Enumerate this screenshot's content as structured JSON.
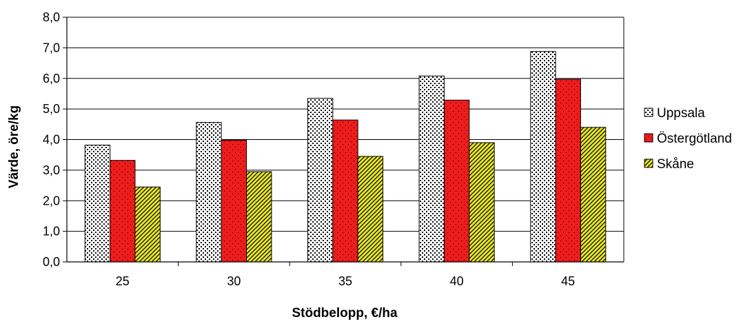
{
  "chart_data": {
    "type": "bar",
    "xlabel": "Stödbelopp, €/ha",
    "ylabel": "Värde, öre/kg",
    "categories": [
      "25",
      "30",
      "35",
      "40",
      "45"
    ],
    "ylim": [
      0,
      8
    ],
    "yticks": [
      "0,0",
      "1,0",
      "2,0",
      "3,0",
      "4,0",
      "5,0",
      "6,0",
      "7,0",
      "8,0"
    ],
    "grid": true,
    "legend_position": "right",
    "series": [
      {
        "name": "Uppsala",
        "values": [
          3.82,
          4.56,
          5.35,
          6.08,
          6.88
        ],
        "color": "#ffffff",
        "pattern": "dots-black"
      },
      {
        "name": "Östergötland",
        "values": [
          3.32,
          3.98,
          4.64,
          5.29,
          5.97
        ],
        "color": "#ee1c1c",
        "pattern": "dots-sparse"
      },
      {
        "name": "Skåne",
        "values": [
          2.45,
          2.95,
          3.45,
          3.9,
          4.4
        ],
        "color": "#e6e62a",
        "pattern": "diagonal-stripes"
      }
    ]
  }
}
